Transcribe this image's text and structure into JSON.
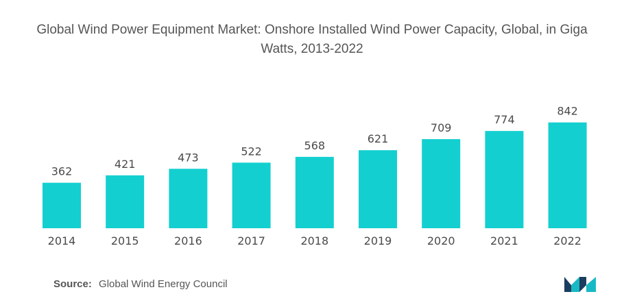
{
  "title": "Global Wind Power Equipment Market: Onshore Installed Wind Power Capacity, Global, in Giga Watts, 2013-2022",
  "source": {
    "label": "Source:",
    "text": "Global Wind Energy Council"
  },
  "colors": {
    "bar": "#14cfd0",
    "logo_dark": "#1d3d5e",
    "logo_teal": "#18b9c4"
  },
  "chart_data": {
    "type": "bar",
    "title": "Global Wind Power Equipment Market: Onshore Installed Wind Power Capacity, Global, in Giga Watts, 2013-2022",
    "categories": [
      "2014",
      "2015",
      "2016",
      "2017",
      "2018",
      "2019",
      "2020",
      "2021",
      "2022"
    ],
    "values": [
      362,
      421,
      473,
      522,
      568,
      621,
      709,
      774,
      842
    ],
    "xlabel": "",
    "ylabel": "",
    "ylim": [
      0,
      900
    ],
    "grid": false,
    "legend": "none",
    "data_labels": true
  }
}
